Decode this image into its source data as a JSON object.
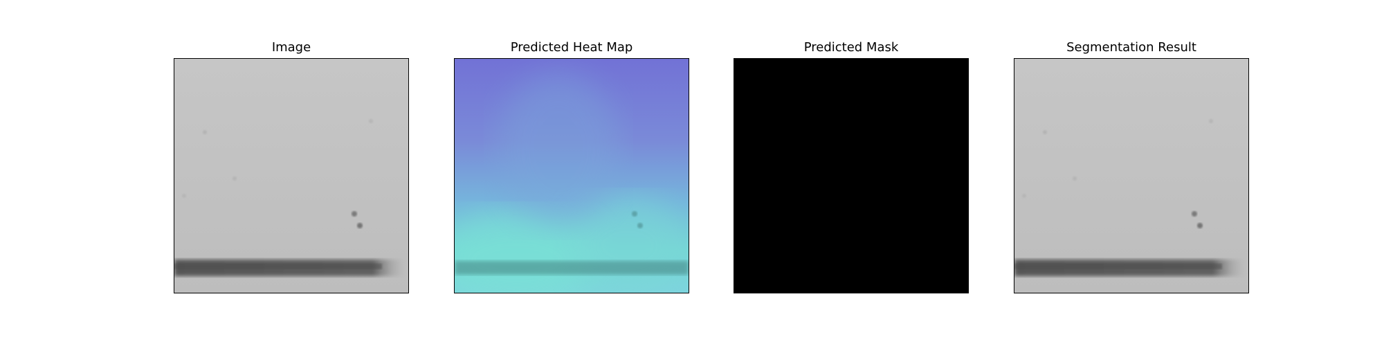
{
  "panels": [
    {
      "title": "Image"
    },
    {
      "title": "Predicted Heat Map"
    },
    {
      "title": "Predicted Mask"
    },
    {
      "title": "Segmentation Result"
    }
  ],
  "colors": {
    "image_gray": "#c3c3c3",
    "streak": "#5a5a5a",
    "heat_blue": "#7474dc",
    "heat_cyan": "#7ae0d6",
    "mask": "#000000"
  }
}
